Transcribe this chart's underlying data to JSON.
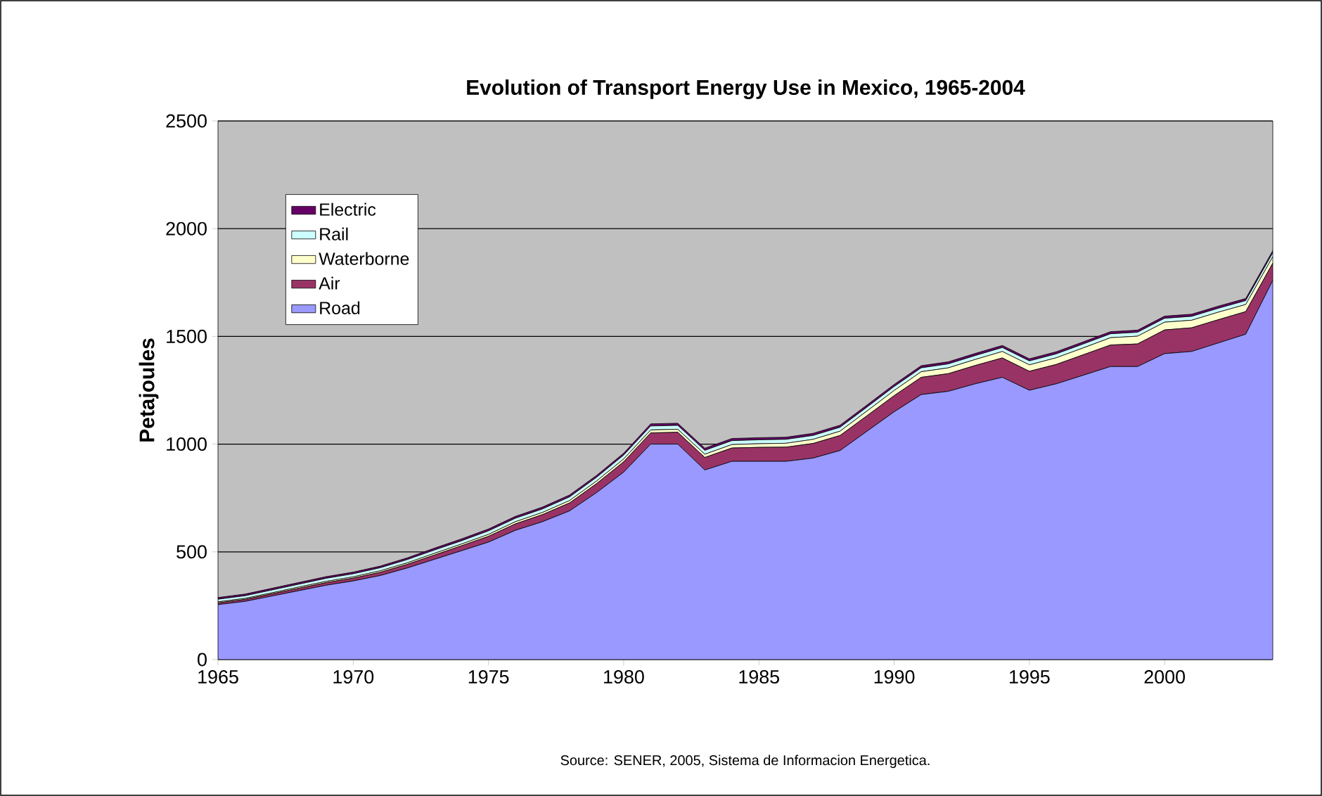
{
  "chart_data": {
    "type": "area",
    "title": "Evolution of Transport Energy Use in Mexico, 1965-2004",
    "ylabel": "Petajoules",
    "annotations": [
      "Source: SENER, 2005, Sistema de Informacion Energetica."
    ],
    "x": [
      1965,
      1966,
      1967,
      1968,
      1969,
      1970,
      1971,
      1972,
      1973,
      1974,
      1975,
      1976,
      1977,
      1978,
      1979,
      1980,
      1981,
      1982,
      1983,
      1984,
      1985,
      1986,
      1987,
      1988,
      1989,
      1990,
      1991,
      1992,
      1993,
      1994,
      1995,
      1996,
      1997,
      1998,
      1999,
      2000,
      2001,
      2002,
      2003,
      2004
    ],
    "stacked": true,
    "series": [
      {
        "name": "Road",
        "color": "#9999ff",
        "values": [
          255,
          270,
          295,
          320,
          345,
          365,
          390,
          425,
          465,
          505,
          545,
          600,
          640,
          690,
          775,
          870,
          1000,
          1000,
          880,
          920,
          920,
          920,
          935,
          970,
          1060,
          1150,
          1230,
          1245,
          1280,
          1310,
          1250,
          1280,
          1320,
          1360,
          1360,
          1420,
          1430,
          1470,
          1510,
          1760
        ]
      },
      {
        "name": "Air",
        "color": "#993366",
        "values": [
          8,
          9,
          10,
          11,
          12,
          13,
          15,
          17,
          20,
          23,
          27,
          30,
          33,
          37,
          42,
          48,
          52,
          55,
          58,
          62,
          65,
          66,
          68,
          70,
          72,
          75,
          80,
          82,
          85,
          90,
          88,
          90,
          95,
          100,
          105,
          110,
          110,
          108,
          105,
          80
        ]
      },
      {
        "name": "Waterborne",
        "color": "#ffffcc",
        "values": [
          5,
          5,
          5,
          6,
          6,
          6,
          7,
          7,
          8,
          8,
          9,
          10,
          10,
          11,
          12,
          13,
          14,
          14,
          15,
          16,
          17,
          18,
          19,
          20,
          22,
          24,
          26,
          27,
          28,
          30,
          30,
          31,
          32,
          34,
          36,
          36,
          35,
          35,
          33,
          30
        ]
      },
      {
        "name": "Rail",
        "color": "#ccffff",
        "values": [
          12,
          12,
          13,
          13,
          14,
          14,
          14,
          15,
          15,
          15,
          16,
          16,
          16,
          17,
          17,
          18,
          18,
          18,
          18,
          18,
          18,
          18,
          18,
          18,
          18,
          18,
          18,
          18,
          18,
          18,
          18,
          18,
          18,
          18,
          18,
          18,
          18,
          18,
          18,
          18
        ]
      },
      {
        "name": "Electric",
        "color": "#660066",
        "values": [
          8,
          8,
          8,
          8,
          8,
          8,
          8,
          8,
          9,
          9,
          9,
          9,
          9,
          9,
          9,
          9,
          10,
          10,
          10,
          10,
          10,
          10,
          10,
          10,
          10,
          10,
          10,
          10,
          10,
          10,
          10,
          10,
          10,
          10,
          10,
          10,
          10,
          10,
          10,
          10
        ]
      }
    ],
    "xlim": [
      1965,
      2004
    ],
    "xticks": [
      1965,
      1970,
      1975,
      1980,
      1985,
      1990,
      1995,
      2000
    ],
    "ylim": [
      0,
      2500
    ],
    "yticks": [
      0,
      500,
      1000,
      1500,
      2000,
      2500
    ],
    "grid": "y",
    "legend": "top left"
  }
}
